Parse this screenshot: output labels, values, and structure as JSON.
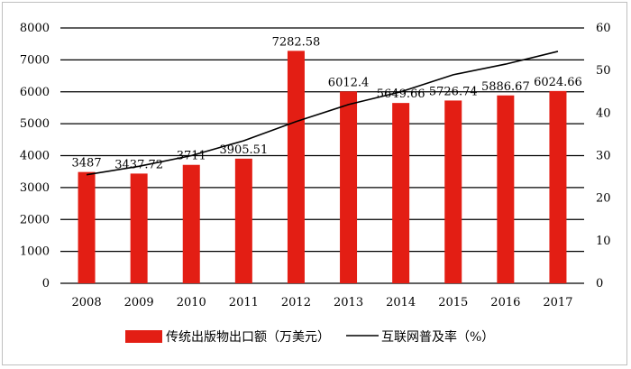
{
  "chart_data": {
    "type": "bar",
    "categories": [
      "2008",
      "2009",
      "2010",
      "2011",
      "2012",
      "2013",
      "2014",
      "2015",
      "2016",
      "2017"
    ],
    "series": [
      {
        "name": "传统出版物出口额（万美元）",
        "type": "bar",
        "axis": "left",
        "color": "#e31e14",
        "values": [
          3487,
          3437.72,
          3711,
          3905.51,
          7282.58,
          6012.4,
          5649.66,
          5726.74,
          5886.67,
          6024.66
        ],
        "labels": [
          "3487",
          "3437.72",
          "3711",
          "3905.51",
          "7282.58",
          "6012.4",
          "5649.66",
          "5726.74",
          "5886.67",
          "6024.66"
        ]
      },
      {
        "name": "互联网普及率（%）",
        "type": "line",
        "axis": "right",
        "color": "#000000",
        "values": [
          25.5,
          27.5,
          30,
          33.5,
          38,
          42,
          45,
          49,
          51.5,
          54.5
        ]
      }
    ],
    "ylim_left": [
      0,
      8000
    ],
    "yticks_left": [
      "0",
      "1000",
      "2000",
      "3000",
      "4000",
      "5000",
      "6000",
      "7000",
      "8000"
    ],
    "ylim_right": [
      0,
      60
    ],
    "yticks_right": [
      "0",
      "10",
      "20",
      "30",
      "40",
      "50",
      "60"
    ],
    "grid": "horizontal",
    "legend_position": "bottom"
  }
}
